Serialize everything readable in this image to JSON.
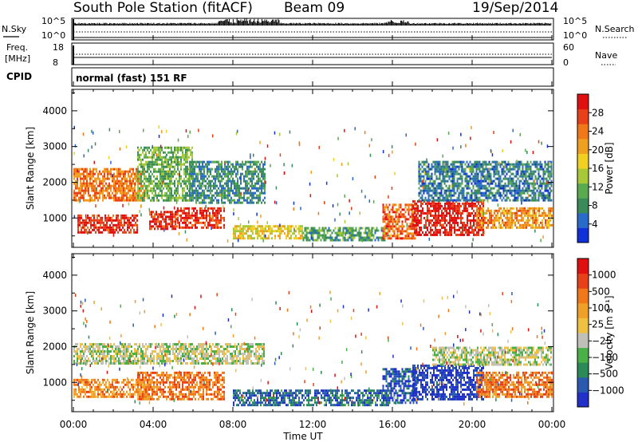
{
  "header": {
    "station": "South Pole Station (fitACF)",
    "beam": "Beam 09",
    "date": "19/Sep/2014"
  },
  "top_panel": {
    "left_label": "N.Sky",
    "right_label": "N.Search",
    "left_ticks": [
      "10^5",
      "10^0"
    ],
    "right_ticks": [
      "10^5",
      "10^0"
    ]
  },
  "freq_panel": {
    "left_label_line1": "Freq.",
    "left_label_line2": "[MHz]",
    "right_label": "Nave",
    "left_ticks": [
      "18",
      "8"
    ],
    "right_ticks": [
      "60",
      "0"
    ]
  },
  "cpid_panel": {
    "label": "CPID",
    "text": "normal (fast) 151 RF"
  },
  "chart_data": [
    {
      "type": "heatmap",
      "title": "Power",
      "ylabel": "Slant Range [km]",
      "xlabel": "Time UT",
      "xlim": [
        0,
        24
      ],
      "ylim": [
        180,
        4600
      ],
      "yticks": [
        1000,
        2000,
        3000,
        4000
      ],
      "xticks": [
        "00:00",
        "04:00",
        "08:00",
        "12:00",
        "16:00",
        "20:00",
        "00:00"
      ],
      "colorbar": {
        "label": "Power [dB]",
        "ticks": [
          "4",
          "8",
          "12",
          "16",
          "20",
          "24",
          "28"
        ],
        "colors": [
          "#1030d8",
          "#2a6ac8",
          "#3a8a5a",
          "#5aaa50",
          "#a8c838",
          "#f0d020",
          "#f0a020",
          "#f07818",
          "#e84018",
          "#e01010"
        ]
      },
      "regions": [
        {
          "t0": 0.0,
          "t1": 3.6,
          "r0": 1500,
          "r1": 2400,
          "level": 0.75
        },
        {
          "t0": 0.2,
          "t1": 3.2,
          "r0": 600,
          "r1": 1100,
          "level": 0.9
        },
        {
          "t0": 3.2,
          "t1": 6.0,
          "r0": 1500,
          "r1": 3000,
          "level": 0.35
        },
        {
          "t0": 3.8,
          "t1": 5.2,
          "r0": 700,
          "r1": 1200,
          "level": 0.9
        },
        {
          "t0": 5.2,
          "t1": 7.6,
          "r0": 700,
          "r1": 1300,
          "level": 0.9
        },
        {
          "t0": 5.8,
          "t1": 9.6,
          "r0": 1400,
          "r1": 2600,
          "level": 0.25
        },
        {
          "t0": 8.0,
          "t1": 11.5,
          "r0": 400,
          "r1": 800,
          "level": 0.55
        },
        {
          "t0": 11.5,
          "t1": 15.8,
          "r0": 350,
          "r1": 750,
          "level": 0.3
        },
        {
          "t0": 15.5,
          "t1": 17.2,
          "r0": 400,
          "r1": 1400,
          "level": 0.8
        },
        {
          "t0": 17.0,
          "t1": 20.6,
          "r0": 500,
          "r1": 1500,
          "level": 0.95
        },
        {
          "t0": 17.3,
          "t1": 24.0,
          "r0": 1500,
          "r1": 2600,
          "level": 0.2
        },
        {
          "t0": 20.2,
          "t1": 24.0,
          "r0": 700,
          "r1": 1300,
          "level": 0.7
        }
      ]
    },
    {
      "type": "heatmap",
      "title": "Velocity",
      "ylabel": "Slant Range [km]",
      "xlabel": "Time UT",
      "xlim": [
        0,
        24
      ],
      "ylim": [
        180,
        4600
      ],
      "yticks": [
        1000,
        2000,
        3000,
        4000
      ],
      "xticks": [
        "00:00",
        "04:00",
        "08:00",
        "12:00",
        "16:00",
        "20:00",
        "00:00"
      ],
      "colorbar": {
        "label": "Velocity [m s⁻¹]",
        "ticks": [
          "1000",
          "500",
          "100",
          "25",
          "−25",
          "−100",
          "−500",
          "−1000"
        ],
        "colors": [
          "#2030c8",
          "#2a5ab0",
          "#2a8a58",
          "#4ab048",
          "#c0c0b8",
          "#f0c040",
          "#f0a028",
          "#f07818",
          "#e84018",
          "#e01010"
        ]
      },
      "regions": [
        {
          "t0": 0.0,
          "t1": 3.8,
          "r0": 600,
          "r1": 1100,
          "level": 0.7
        },
        {
          "t0": 0.0,
          "t1": 9.6,
          "r0": 1500,
          "r1": 2100,
          "level": 0.45
        },
        {
          "t0": 3.2,
          "t1": 7.6,
          "r0": 500,
          "r1": 1300,
          "level": 0.75
        },
        {
          "t0": 8.0,
          "t1": 15.8,
          "r0": 350,
          "r1": 800,
          "level": 0.18
        },
        {
          "t0": 15.5,
          "t1": 17.2,
          "r0": 400,
          "r1": 1400,
          "level": 0.12
        },
        {
          "t0": 17.0,
          "t1": 20.6,
          "r0": 500,
          "r1": 1500,
          "level": 0.05
        },
        {
          "t0": 18.0,
          "t1": 24.0,
          "r0": 1500,
          "r1": 2000,
          "level": 0.45
        },
        {
          "t0": 20.2,
          "t1": 24.0,
          "r0": 600,
          "r1": 1300,
          "level": 0.75
        }
      ]
    }
  ]
}
